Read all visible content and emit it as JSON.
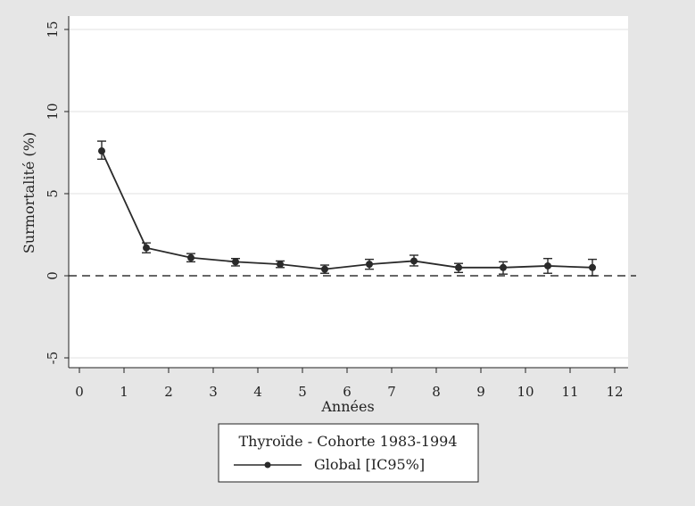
{
  "chart_data": {
    "type": "line",
    "title": "",
    "xlabel": "Années",
    "ylabel": "Surmortalité (%)",
    "xlim": [
      0,
      12
    ],
    "ylim": [
      -5,
      15
    ],
    "x_ticks": [
      "0",
      "1",
      "2",
      "3",
      "4",
      "5",
      "6",
      "7",
      "8",
      "9",
      "10",
      "11",
      "12"
    ],
    "y_ticks": [
      "-5",
      "0",
      "5",
      "10",
      "15"
    ],
    "grid": "horizontal",
    "reference_line": {
      "y": 0,
      "style": "dashed"
    },
    "legend": {
      "title": "Thyroïde - Cohorte 1983-1994",
      "placement": "bottom-center"
    },
    "series": [
      {
        "name": "Global [IC95%]",
        "x": [
          0.5,
          1.5,
          2.5,
          3.5,
          4.5,
          5.5,
          6.5,
          7.5,
          8.5,
          9.5,
          10.5,
          11.5
        ],
        "values": [
          7.6,
          1.7,
          1.1,
          0.85,
          0.7,
          0.4,
          0.7,
          0.9,
          0.5,
          0.5,
          0.6,
          0.5
        ],
        "ci_low": [
          7.1,
          1.4,
          0.85,
          0.6,
          0.5,
          0.15,
          0.4,
          0.6,
          0.2,
          0.1,
          0.15,
          0.0
        ],
        "ci_high": [
          8.2,
          2.0,
          1.35,
          1.05,
          0.9,
          0.65,
          1.0,
          1.25,
          0.75,
          0.85,
          1.05,
          1.0
        ]
      }
    ],
    "colors": {
      "line": "#2a2a2a",
      "grid": "#e6e6e6",
      "plot_bg": "#ffffff",
      "outer_bg": "#e6e6e6"
    }
  }
}
